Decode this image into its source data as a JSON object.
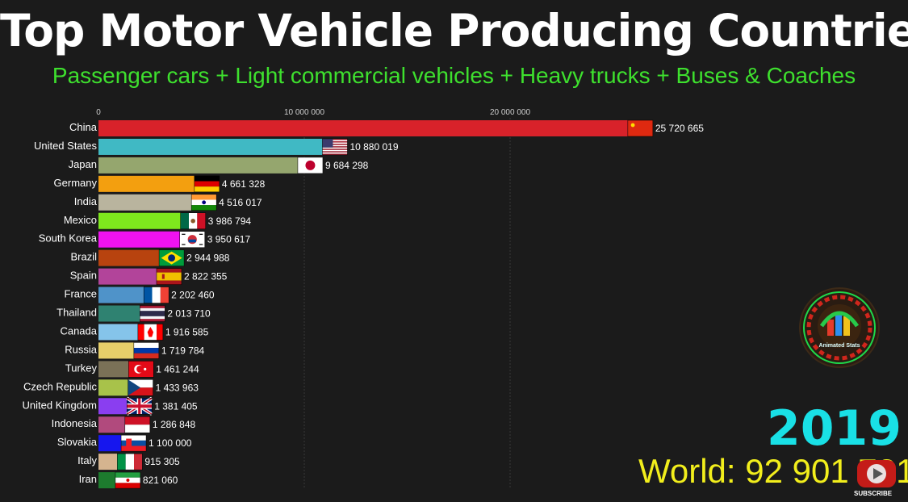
{
  "title": "Top Motor Vehicle Producing Countries",
  "subtitle": "Passenger cars + Light commercial vehicles + Heavy trucks + Buses & Coaches",
  "year": "2019",
  "world_total": "World: 92 901 721",
  "logo_text": "Animated Stats",
  "subscribe_label": "SUBSCRIBE",
  "chart_data": {
    "type": "bar",
    "orientation": "horizontal",
    "x_ticks": [
      {
        "value": 0,
        "label": "0"
      },
      {
        "value": 10000000,
        "label": "10 000 000"
      },
      {
        "value": 20000000,
        "label": "20 000 000"
      }
    ],
    "xlim": [
      0,
      27000000
    ],
    "grid": true,
    "bars": [
      {
        "category": "China",
        "value": 25720665,
        "label": "25 720 665",
        "color": "#d8222a",
        "flag": "china"
      },
      {
        "category": "United States",
        "value": 10880019,
        "label": "10 880 019",
        "color": "#40b9c4",
        "flag": "usa"
      },
      {
        "category": "Japan",
        "value": 9684298,
        "label": "9 684 298",
        "color": "#95a66e",
        "flag": "japan"
      },
      {
        "category": "Germany",
        "value": 4661328,
        "label": "4 661 328",
        "color": "#f39f0f",
        "flag": "germany"
      },
      {
        "category": "India",
        "value": 4516017,
        "label": "4 516 017",
        "color": "#b9b49e",
        "flag": "india"
      },
      {
        "category": "Mexico",
        "value": 3986794,
        "label": "3 986 794",
        "color": "#7ee81d",
        "flag": "mexico"
      },
      {
        "category": "South Korea",
        "value": 3950617,
        "label": "3 950 617",
        "color": "#f012f0",
        "flag": "south-korea"
      },
      {
        "category": "Brazil",
        "value": 2944988,
        "label": "2 944 988",
        "color": "#b8430f",
        "flag": "brazil"
      },
      {
        "category": "Spain",
        "value": 2822355,
        "label": "2 822 355",
        "color": "#b2449a",
        "flag": "spain"
      },
      {
        "category": "France",
        "value": 2202460,
        "label": "2 202 460",
        "color": "#4f93c9",
        "flag": "france"
      },
      {
        "category": "Thailand",
        "value": 2013710,
        "label": "2 013 710",
        "color": "#2f8271",
        "flag": "thailand"
      },
      {
        "category": "Canada",
        "value": 1916585,
        "label": "1 916 585",
        "color": "#85c4ea",
        "flag": "canada"
      },
      {
        "category": "Russia",
        "value": 1719784,
        "label": "1 719 784",
        "color": "#e6cf6a",
        "flag": "russia"
      },
      {
        "category": "Turkey",
        "value": 1461244,
        "label": "1 461 244",
        "color": "#7a7157",
        "flag": "turkey"
      },
      {
        "category": "Czech Republic",
        "value": 1433963,
        "label": "1 433 963",
        "color": "#a8c24a",
        "flag": "czech"
      },
      {
        "category": "United Kingdom",
        "value": 1381405,
        "label": "1 381 405",
        "color": "#8a3ef0",
        "flag": "uk"
      },
      {
        "category": "Indonesia",
        "value": 1286848,
        "label": "1 286 848",
        "color": "#b14a7d",
        "flag": "indonesia"
      },
      {
        "category": "Slovakia",
        "value": 1100000,
        "label": "1 100 000",
        "color": "#1616ee",
        "flag": "slovakia"
      },
      {
        "category": "Italy",
        "value": 915305,
        "label": "915 305",
        "color": "#d5b48f",
        "flag": "italy"
      },
      {
        "category": "Iran",
        "value": 821060,
        "label": "821 060",
        "color": "#1d7b2e",
        "flag": "iran"
      }
    ]
  }
}
